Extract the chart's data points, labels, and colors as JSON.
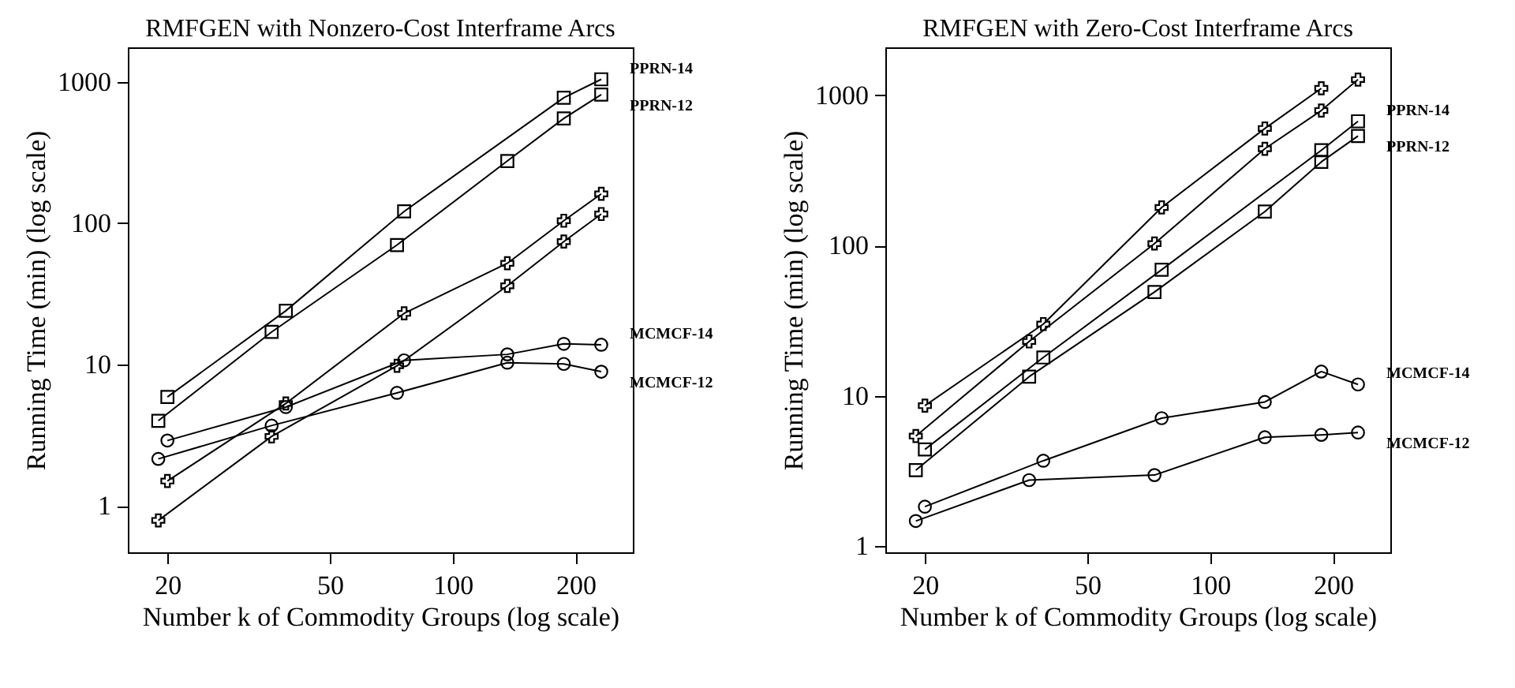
{
  "chart_data": [
    {
      "type": "line",
      "title": "RMFGEN with Nonzero-Cost Interframe Arcs",
      "xlabel": "Number k of Commodity Groups (log scale)",
      "ylabel": "Running Time (min) (log scale)",
      "log": "xy",
      "xlim": [
        16,
        276
      ],
      "ylim": [
        0.47,
        1750
      ],
      "xticks": [
        20,
        50,
        100,
        200
      ],
      "yticks": [
        1,
        10,
        100,
        1000
      ],
      "series": [
        {
          "name": "PPRN-14",
          "color": "#000000",
          "marker": "square",
          "x": [
            20,
            39,
            76,
            187,
            231
          ],
          "values": [
            5.9,
            24,
            121,
            770,
            1040
          ]
        },
        {
          "name": "PPRN-12",
          "color": "#000000",
          "marker": "square",
          "x": [
            19,
            36,
            73,
            136,
            187,
            231
          ],
          "values": [
            4.0,
            17,
            70,
            275,
            550,
            810
          ]
        },
        {
          "color": "#000000",
          "marker": "cross",
          "x": [
            20,
            39,
            76,
            136,
            187,
            231
          ],
          "values": [
            1.5,
            5.3,
            23,
            52,
            104,
            161
          ]
        },
        {
          "color": "#000000",
          "marker": "cross",
          "x": [
            19,
            36,
            73,
            136,
            187,
            231
          ],
          "values": [
            0.79,
            3.1,
            9.8,
            36,
            74,
            116
          ]
        },
        {
          "name": "MCMCF-14",
          "color": "#000000",
          "marker": "circle",
          "x": [
            20,
            39,
            76,
            136,
            187,
            231
          ],
          "values": [
            2.9,
            5.0,
            10.7,
            11.8,
            14,
            13.8
          ]
        },
        {
          "name": "MCMCF-12",
          "color": "#000000",
          "marker": "circle",
          "x": [
            19,
            36,
            73,
            136,
            187,
            231
          ],
          "values": [
            2.15,
            3.7,
            6.3,
            10.3,
            10.1,
            8.9
          ]
        }
      ]
    },
    {
      "type": "line",
      "title": "RMFGEN with Zero-Cost Interframe Arcs",
      "xlabel": "Number k of Commodity Groups (log scale)",
      "ylabel": "Running Time (min) (log scale)",
      "log": "xy",
      "xlim": [
        16,
        276
      ],
      "ylim": [
        0.91,
        2080
      ],
      "xticks": [
        20,
        50,
        100,
        200
      ],
      "yticks": [
        1,
        10,
        100,
        1000
      ],
      "series": [
        {
          "color": "#000000",
          "marker": "cross",
          "x": [
            20,
            39,
            76,
            136,
            187
          ],
          "values": [
            8.6,
            30,
            179,
            600,
            1110
          ]
        },
        {
          "color": "#000000",
          "marker": "cross",
          "x": [
            19,
            36,
            73,
            136,
            187,
            230
          ],
          "values": [
            5.4,
            23,
            103,
            440,
            790,
            1270
          ]
        },
        {
          "name": "PPRN-14",
          "color": "#000000",
          "marker": "square",
          "x": [
            20,
            39,
            76,
            187,
            230
          ],
          "values": [
            4.4,
            18,
            69,
            430,
            670
          ]
        },
        {
          "name": "PPRN-12",
          "color": "#000000",
          "marker": "square",
          "x": [
            19,
            36,
            73,
            136,
            187,
            230
          ],
          "values": [
            3.2,
            13.4,
            49,
            168,
            360,
            535
          ]
        },
        {
          "name": "MCMCF-14",
          "color": "#000000",
          "marker": "circle",
          "x": [
            20,
            39,
            76,
            136,
            187,
            230
          ],
          "values": [
            1.83,
            3.7,
            7.1,
            9.1,
            14.5,
            11.9
          ]
        },
        {
          "name": "MCMCF-12",
          "color": "#000000",
          "marker": "circle",
          "x": [
            19,
            36,
            73,
            136,
            187,
            230
          ],
          "values": [
            1.47,
            2.75,
            2.97,
            5.3,
            5.5,
            5.7
          ]
        }
      ]
    }
  ]
}
